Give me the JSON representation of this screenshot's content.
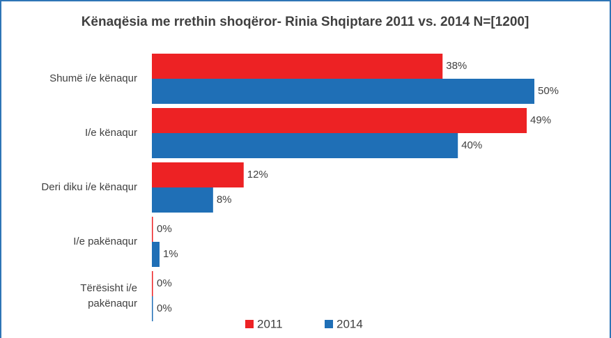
{
  "chart_data": {
    "type": "bar",
    "orientation": "horizontal",
    "title": "Kënaqësia me rrethin shoqëror- Rinia Shqiptare 2011 vs. 2014 N=[1200]",
    "categories": [
      "Shumë i/e kënaqur",
      "I/e kënaqur",
      "Deri diku i/e kënaqur",
      "I/e pakënaqur",
      "Tërësisht i/e pakënaqur"
    ],
    "series": [
      {
        "name": "2011",
        "color": "#ed2224",
        "values": [
          38,
          49,
          12,
          0,
          0
        ],
        "value_labels": [
          "38%",
          "49%",
          "12%",
          "0%",
          "0%"
        ]
      },
      {
        "name": "2014",
        "color": "#1f6fb6",
        "values": [
          50,
          40,
          8,
          1,
          0
        ],
        "value_labels": [
          "50%",
          "40%",
          "8%",
          "1%",
          "0%"
        ]
      }
    ],
    "xlim": [
      0,
      50
    ],
    "legend": "bottom"
  }
}
